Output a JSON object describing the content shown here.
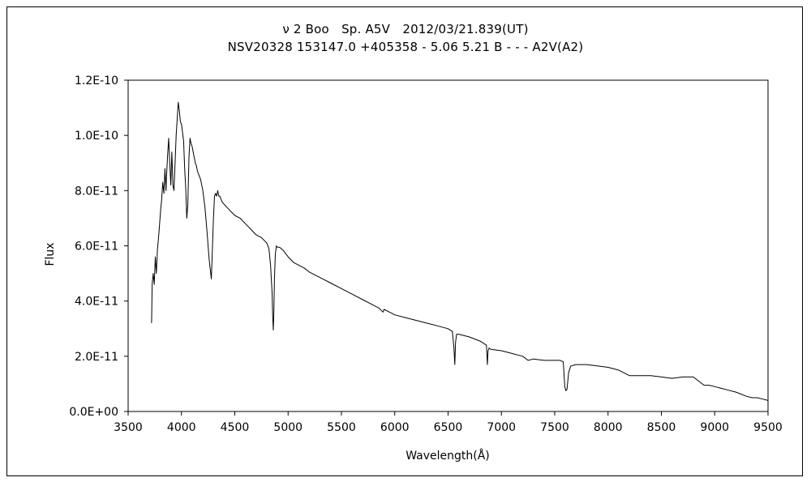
{
  "chart_data": {
    "type": "line",
    "title": "ν 2 Boo　Sp. A5V　2012/03/21.839(UT)",
    "subtitle": "NSV20328 153147.0 +405358 - 5.06 5.21 B - - - A2V(A2)",
    "xlabel": "Wavelength(Å)",
    "ylabel": "Flux",
    "xlim": [
      3500,
      9500
    ],
    "ylim": [
      0,
      1.2e-10
    ],
    "x_ticks": [
      3500,
      4000,
      4500,
      5000,
      5500,
      6000,
      6500,
      7000,
      7500,
      8000,
      8500,
      9000,
      9500
    ],
    "x_tick_labels": [
      "3500",
      "4000",
      "4500",
      "5000",
      "5500",
      "6000",
      "6500",
      "7000",
      "7500",
      "8000",
      "8500",
      "9000",
      "9500"
    ],
    "y_ticks": [
      0,
      2e-11,
      4e-11,
      6e-11,
      8e-11,
      1e-10,
      1.2e-10
    ],
    "y_tick_labels": [
      "0.0E+00",
      "2.0E-11",
      "4.0E-11",
      "6.0E-11",
      "8.0E-11",
      "1.0E-10",
      "1.2E-10"
    ],
    "grid": false,
    "legend": "none",
    "line_color": "#000000",
    "series": [
      {
        "x": [
          3720,
          3725,
          3735,
          3745,
          3755,
          3765,
          3775,
          3785,
          3795,
          3805,
          3815,
          3825,
          3835,
          3845,
          3855,
          3860,
          3870,
          3880,
          3890,
          3900,
          3910,
          3920,
          3930,
          3940,
          3950,
          3960,
          3970,
          3980,
          3990,
          4000,
          4010,
          4020,
          4030,
          4040,
          4050,
          4060,
          4070,
          4080,
          4090,
          4100,
          4110,
          4120,
          4130,
          4140,
          4150,
          4160,
          4180,
          4200,
          4220,
          4240,
          4260,
          4280,
          4300,
          4310,
          4320,
          4330,
          4340,
          4345,
          4350,
          4360,
          4370,
          4380,
          4400,
          4450,
          4500,
          4550,
          4600,
          4650,
          4700,
          4750,
          4800,
          4820,
          4835,
          4850,
          4855,
          4861,
          4866,
          4872,
          4880,
          4890,
          4900,
          4920,
          4950,
          5000,
          5050,
          5100,
          5150,
          5200,
          5300,
          5400,
          5500,
          5600,
          5700,
          5800,
          5850,
          5890,
          5900,
          6000,
          6100,
          6200,
          6300,
          6400,
          6500,
          6540,
          6555,
          6563,
          6570,
          6580,
          6600,
          6700,
          6800,
          6860,
          6869,
          6875,
          6885,
          6900,
          7000,
          7100,
          7200,
          7250,
          7300,
          7400,
          7500,
          7550,
          7580,
          7594,
          7605,
          7615,
          7630,
          7650,
          7700,
          7800,
          7900,
          8000,
          8100,
          8150,
          8200,
          8300,
          8400,
          8500,
          8600,
          8700,
          8800,
          8850,
          8900,
          8950,
          9000,
          9100,
          9200,
          9300,
          9350,
          9400,
          9450,
          9500
        ],
        "y": [
          3.2e-11,
          4.6e-11,
          5e-11,
          4.6e-11,
          5.6e-11,
          5e-11,
          5.9e-11,
          6.3e-11,
          6.8e-11,
          7.3e-11,
          7.7e-11,
          8.3e-11,
          7.9e-11,
          8.8e-11,
          8e-11,
          8.5e-11,
          9.3e-11,
          9.9e-11,
          9e-11,
          8.2e-11,
          9.4e-11,
          8.2e-11,
          8e-11,
          9e-11,
          1e-10,
          1.06e-10,
          1.12e-10,
          1.09e-10,
          1.05e-10,
          1.04e-10,
          1.01e-10,
          9.8e-11,
          8.8e-11,
          8.1e-11,
          7e-11,
          7.5e-11,
          9.2e-11,
          9.9e-11,
          9.7e-11,
          9.6e-11,
          9.4e-11,
          9.2e-11,
          9e-11,
          8.9e-11,
          8.7e-11,
          8.6e-11,
          8.4e-11,
          8e-11,
          7.4e-11,
          6.5e-11,
          5.5e-11,
          4.8e-11,
          7e-11,
          7.8e-11,
          7.9e-11,
          7.8e-11,
          8e-11,
          7.9e-11,
          7.8e-11,
          7.8e-11,
          7.7e-11,
          7.6e-11,
          7.5e-11,
          7.3e-11,
          7.1e-11,
          7e-11,
          6.8e-11,
          6.6e-11,
          6.4e-11,
          6.3e-11,
          6.1e-11,
          5.9e-11,
          5.3e-11,
          4.3e-11,
          3.5e-11,
          2.95e-11,
          3.5e-11,
          4.8e-11,
          5.7e-11,
          6e-11,
          5.95e-11,
          5.95e-11,
          5.85e-11,
          5.6e-11,
          5.4e-11,
          5.3e-11,
          5.2e-11,
          5.05e-11,
          4.85e-11,
          4.65e-11,
          4.45e-11,
          4.25e-11,
          4.05e-11,
          3.85e-11,
          3.75e-11,
          3.6e-11,
          3.7e-11,
          3.5e-11,
          3.4e-11,
          3.3e-11,
          3.2e-11,
          3.1e-11,
          3e-11,
          2.9e-11,
          2.3e-11,
          1.7e-11,
          2.5e-11,
          2.8e-11,
          2.8e-11,
          2.7e-11,
          2.55e-11,
          2.4e-11,
          1.7e-11,
          2.2e-11,
          2.3e-11,
          2.25e-11,
          2.2e-11,
          2.1e-11,
          2e-11,
          1.85e-11,
          1.9e-11,
          1.85e-11,
          1.85e-11,
          1.85e-11,
          1.8e-11,
          9e-12,
          7.5e-12,
          8e-12,
          1.4e-11,
          1.65e-11,
          1.7e-11,
          1.7e-11,
          1.65e-11,
          1.6e-11,
          1.5e-11,
          1.4e-11,
          1.3e-11,
          1.3e-11,
          1.3e-11,
          1.25e-11,
          1.2e-11,
          1.25e-11,
          1.25e-11,
          1.1e-11,
          9.5e-12,
          9.5e-12,
          9e-12,
          8e-12,
          7e-12,
          5.5e-12,
          5e-12,
          5e-12,
          4.5e-12,
          4e-12
        ]
      }
    ]
  }
}
